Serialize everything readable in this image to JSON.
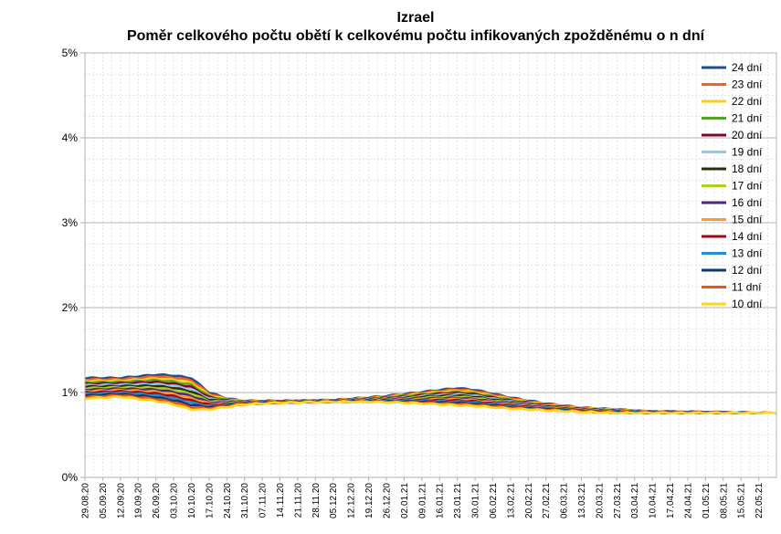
{
  "chart_data": {
    "type": "line",
    "title": "Izrael",
    "subtitle": "Poměr celkového počtu obětí k celkovému počtu infikovaných zpožděnému o n dní",
    "xlabel": "",
    "ylabel": "",
    "ylim": [
      0,
      5
    ],
    "y_tick_labels": [
      "0%",
      "1%",
      "2%",
      "3%",
      "4%",
      "5%"
    ],
    "x_start": "2020-08-29",
    "x_end": "2021-05-29",
    "x_tick_labels": [
      "29.08.20",
      "05.09.20",
      "12.09.20",
      "19.09.20",
      "26.09.20",
      "03.10.20",
      "10.10.20",
      "17.10.20",
      "24.10.20",
      "31.10.20",
      "07.11.20",
      "14.11.20",
      "21.11.20",
      "28.11.20",
      "05.12.20",
      "12.12.20",
      "19.12.20",
      "26.12.20",
      "02.01.21",
      "09.01.21",
      "16.01.21",
      "23.01.21",
      "30.01.21",
      "06.02.21",
      "13.02.21",
      "20.02.21",
      "27.02.21",
      "06.03.21",
      "13.03.21",
      "20.03.21",
      "27.03.21",
      "03.04.21",
      "10.04.21",
      "17.04.21",
      "24.04.21",
      "01.05.21",
      "08.05.21",
      "15.05.21",
      "22.05.21"
    ],
    "grid": true,
    "legend_position": "top-right",
    "series": [
      {
        "name": "24 dní",
        "color": "#1f4e8c",
        "delay": 24
      },
      {
        "name": "23 dní",
        "color": "#ff5a1f",
        "delay": 23
      },
      {
        "name": "22 dní",
        "color": "#ffcc22",
        "delay": 22
      },
      {
        "name": "21 dní",
        "color": "#5aa02c",
        "delay": 21
      },
      {
        "name": "20 dní",
        "color": "#7a0a28",
        "delay": 20
      },
      {
        "name": "19 dní",
        "color": "#8ec8f0",
        "delay": 19
      },
      {
        "name": "18 dní",
        "color": "#2c2c0a",
        "delay": 18
      },
      {
        "name": "17 dní",
        "color": "#aace2a",
        "delay": 17
      },
      {
        "name": "16 dní",
        "color": "#4b2a7a",
        "delay": 16
      },
      {
        "name": "15 dní",
        "color": "#ff9a2a",
        "delay": 15
      },
      {
        "name": "14 dní",
        "color": "#a00a14",
        "delay": 14
      },
      {
        "name": "13 dní",
        "color": "#2a8ad0",
        "delay": 13
      },
      {
        "name": "12 dní",
        "color": "#0a3a6a",
        "delay": 12
      },
      {
        "name": "11 dní",
        "color": "#ff4a10",
        "delay": 11
      },
      {
        "name": "10 dní",
        "color": "#ffd81a",
        "delay": 10
      }
    ],
    "series_points": [
      {
        "delay": 24,
        "x": [
          "2020-08-29",
          "2020-09-12",
          "2020-09-26",
          "2020-10-03",
          "2020-10-10",
          "2020-10-17",
          "2020-10-24",
          "2020-10-31",
          "2020-11-14",
          "2020-12-05",
          "2020-12-19",
          "2021-01-02",
          "2021-01-16",
          "2021-01-23",
          "2021-01-30",
          "2021-02-13",
          "2021-02-27",
          "2021-03-13",
          "2021-03-27",
          "2021-04-06"
        ],
        "y": [
          1.17,
          1.17,
          1.21,
          1.2,
          1.17,
          1.0,
          0.93,
          0.9,
          0.9,
          0.91,
          0.94,
          0.98,
          1.03,
          1.05,
          1.03,
          0.94,
          0.87,
          0.82,
          0.8,
          0.78
        ]
      },
      {
        "delay": 10,
        "x": [
          "2020-08-29",
          "2020-09-12",
          "2020-09-26",
          "2020-10-03",
          "2020-10-10",
          "2020-10-17",
          "2020-10-24",
          "2020-10-31",
          "2020-11-14",
          "2020-12-05",
          "2020-12-19",
          "2021-01-02",
          "2021-01-16",
          "2021-01-23",
          "2021-01-30",
          "2021-02-13",
          "2021-02-27",
          "2021-03-13",
          "2021-03-27",
          "2021-04-10",
          "2021-05-29"
        ],
        "y": [
          0.93,
          0.95,
          0.9,
          0.86,
          0.8,
          0.8,
          0.83,
          0.86,
          0.88,
          0.89,
          0.89,
          0.88,
          0.86,
          0.85,
          0.84,
          0.81,
          0.79,
          0.77,
          0.76,
          0.76,
          0.76
        ]
      }
    ]
  }
}
